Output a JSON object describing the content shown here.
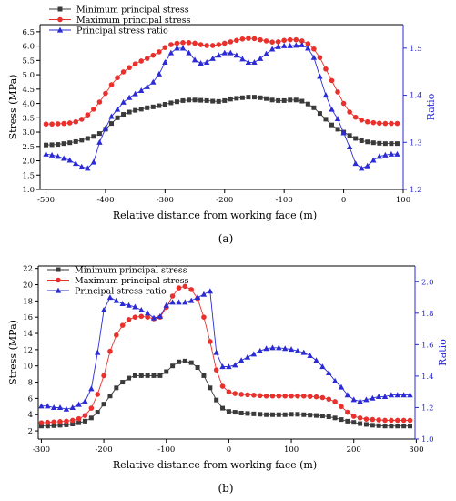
{
  "chart_data": [
    {
      "type": "line",
      "panel_label": "(a)",
      "xlabel": "Relative distance from working face (m)",
      "ylabel": "Stress (MPa)",
      "y2label": "Ratio",
      "xlim": [
        -510,
        100
      ],
      "ylim": [
        1.0,
        6.75
      ],
      "y2lim": [
        1.2,
        1.55
      ],
      "xticks": [
        -500,
        -400,
        -300,
        -200,
        -100,
        0,
        100
      ],
      "yticks": [
        1.0,
        1.5,
        2.0,
        2.5,
        3.0,
        3.5,
        4.0,
        4.5,
        5.0,
        5.5,
        6.0,
        6.5
      ],
      "y2ticks": [
        1.2,
        1.3,
        1.4,
        1.5
      ],
      "legend_position": "top-left",
      "colors": {
        "min": "#3a3a3a",
        "max": "#e8312d",
        "ratio": "#2b2bd6"
      },
      "series": [
        {
          "name": "Minimum principal stress",
          "axis": "left",
          "marker": "square",
          "x": [
            -500,
            -490,
            -480,
            -470,
            -460,
            -450,
            -440,
            -430,
            -420,
            -410,
            -400,
            -390,
            -380,
            -370,
            -360,
            -350,
            -340,
            -330,
            -320,
            -310,
            -300,
            -290,
            -280,
            -270,
            -260,
            -250,
            -240,
            -230,
            -220,
            -210,
            -200,
            -190,
            -180,
            -170,
            -160,
            -150,
            -140,
            -130,
            -120,
            -110,
            -100,
            -90,
            -80,
            -70,
            -60,
            -50,
            -40,
            -30,
            -20,
            -10,
            0,
            10,
            20,
            30,
            40,
            50,
            60,
            70,
            80,
            90
          ],
          "values": [
            2.55,
            2.56,
            2.57,
            2.6,
            2.63,
            2.67,
            2.72,
            2.78,
            2.85,
            2.95,
            3.1,
            3.3,
            3.5,
            3.62,
            3.7,
            3.76,
            3.8,
            3.85,
            3.88,
            3.92,
            3.97,
            4.02,
            4.06,
            4.1,
            4.12,
            4.12,
            4.11,
            4.1,
            4.08,
            4.07,
            4.1,
            4.15,
            4.18,
            4.2,
            4.22,
            4.22,
            4.2,
            4.17,
            4.12,
            4.1,
            4.1,
            4.12,
            4.12,
            4.08,
            3.98,
            3.85,
            3.65,
            3.45,
            3.25,
            3.1,
            3.0,
            2.88,
            2.78,
            2.7,
            2.66,
            2.63,
            2.61,
            2.6,
            2.6,
            2.6
          ]
        },
        {
          "name": "Maximum principal stress",
          "axis": "left",
          "marker": "circle",
          "x": [
            -500,
            -490,
            -480,
            -470,
            -460,
            -450,
            -440,
            -430,
            -420,
            -410,
            -400,
            -390,
            -380,
            -370,
            -360,
            -350,
            -340,
            -330,
            -320,
            -310,
            -300,
            -290,
            -280,
            -270,
            -260,
            -250,
            -240,
            -230,
            -220,
            -210,
            -200,
            -190,
            -180,
            -170,
            -160,
            -150,
            -140,
            -130,
            -120,
            -110,
            -100,
            -90,
            -80,
            -70,
            -60,
            -50,
            -40,
            -30,
            -20,
            -10,
            0,
            10,
            20,
            30,
            40,
            50,
            60,
            70,
            80,
            90
          ],
          "values": [
            3.28,
            3.28,
            3.29,
            3.3,
            3.32,
            3.36,
            3.45,
            3.6,
            3.8,
            4.05,
            4.35,
            4.65,
            4.9,
            5.1,
            5.25,
            5.38,
            5.48,
            5.57,
            5.68,
            5.8,
            5.95,
            6.05,
            6.1,
            6.12,
            6.12,
            6.1,
            6.05,
            6.02,
            6.02,
            6.05,
            6.1,
            6.15,
            6.2,
            6.25,
            6.27,
            6.26,
            6.22,
            6.18,
            6.14,
            6.15,
            6.2,
            6.22,
            6.22,
            6.18,
            6.08,
            5.9,
            5.6,
            5.2,
            4.8,
            4.4,
            4.0,
            3.7,
            3.52,
            3.42,
            3.36,
            3.33,
            3.31,
            3.3,
            3.3,
            3.3
          ]
        },
        {
          "name": "Principal stress ratio",
          "axis": "right",
          "marker": "triangle",
          "x": [
            -500,
            -490,
            -480,
            -470,
            -460,
            -450,
            -440,
            -430,
            -420,
            -410,
            -400,
            -390,
            -380,
            -370,
            -360,
            -350,
            -340,
            -330,
            -320,
            -310,
            -300,
            -290,
            -280,
            -270,
            -260,
            -250,
            -240,
            -230,
            -220,
            -210,
            -200,
            -190,
            -180,
            -170,
            -160,
            -150,
            -140,
            -130,
            -120,
            -110,
            -100,
            -90,
            -80,
            -70,
            -60,
            -50,
            -40,
            -30,
            -20,
            -10,
            0,
            10,
            20,
            30,
            40,
            50,
            60,
            70,
            80,
            90
          ],
          "values": [
            1.275,
            1.273,
            1.27,
            1.266,
            1.262,
            1.255,
            1.248,
            1.245,
            1.258,
            1.3,
            1.33,
            1.355,
            1.37,
            1.385,
            1.395,
            1.403,
            1.41,
            1.418,
            1.428,
            1.445,
            1.47,
            1.49,
            1.5,
            1.5,
            1.49,
            1.475,
            1.468,
            1.47,
            1.478,
            1.485,
            1.49,
            1.49,
            1.485,
            1.477,
            1.47,
            1.47,
            1.478,
            1.488,
            1.498,
            1.503,
            1.505,
            1.505,
            1.506,
            1.507,
            1.5,
            1.48,
            1.44,
            1.4,
            1.37,
            1.35,
            1.32,
            1.29,
            1.255,
            1.245,
            1.25,
            1.262,
            1.27,
            1.273,
            1.275,
            1.275
          ]
        }
      ]
    },
    {
      "type": "line",
      "panel_label": "(b)",
      "xlabel": "Relative distance from working face (m)",
      "ylabel": "Stress (MPa)",
      "y2label": "Ratio",
      "xlim": [
        -305,
        298
      ],
      "ylim": [
        1.0,
        22.3
      ],
      "y2lim": [
        1.0,
        2.1
      ],
      "xticks": [
        -300,
        -200,
        -100,
        0,
        100,
        200,
        300
      ],
      "yticks": [
        2,
        4,
        6,
        8,
        10,
        12,
        14,
        16,
        18,
        20,
        22
      ],
      "y2ticks": [
        1.0,
        1.2,
        1.4,
        1.6,
        1.8,
        2.0
      ],
      "legend_position": "top-left",
      "colors": {
        "min": "#3a3a3a",
        "max": "#e8312d",
        "ratio": "#2b2bd6"
      },
      "series": [
        {
          "name": "Minimum principal stress",
          "axis": "left",
          "marker": "square",
          "x": [
            -300,
            -290,
            -280,
            -270,
            -260,
            -250,
            -240,
            -230,
            -220,
            -210,
            -200,
            -190,
            -180,
            -170,
            -160,
            -150,
            -140,
            -130,
            -120,
            -110,
            -100,
            -90,
            -80,
            -70,
            -60,
            -50,
            -40,
            -30,
            -20,
            -10,
            0,
            10,
            20,
            30,
            40,
            50,
            60,
            70,
            80,
            90,
            100,
            110,
            120,
            130,
            140,
            150,
            160,
            170,
            180,
            190,
            200,
            210,
            220,
            230,
            240,
            250,
            260,
            270,
            280,
            290
          ],
          "values": [
            2.6,
            2.6,
            2.65,
            2.7,
            2.75,
            2.85,
            3.0,
            3.2,
            3.6,
            4.3,
            5.3,
            6.3,
            7.3,
            8.0,
            8.5,
            8.8,
            8.8,
            8.8,
            8.8,
            8.8,
            9.3,
            10.0,
            10.5,
            10.6,
            10.4,
            9.8,
            8.8,
            7.3,
            5.8,
            4.8,
            4.4,
            4.3,
            4.2,
            4.15,
            4.1,
            4.05,
            4.0,
            4.0,
            4.0,
            4.0,
            4.05,
            4.05,
            4.0,
            3.95,
            3.9,
            3.85,
            3.75,
            3.6,
            3.4,
            3.2,
            3.05,
            2.9,
            2.8,
            2.7,
            2.65,
            2.6,
            2.6,
            2.6,
            2.6,
            2.6
          ]
        },
        {
          "name": "Maximum principal stress",
          "axis": "left",
          "marker": "circle",
          "x": [
            -300,
            -290,
            -280,
            -270,
            -260,
            -250,
            -240,
            -230,
            -220,
            -210,
            -200,
            -190,
            -180,
            -170,
            -160,
            -150,
            -140,
            -130,
            -120,
            -110,
            -100,
            -90,
            -80,
            -70,
            -60,
            -50,
            -40,
            -30,
            -20,
            -10,
            0,
            10,
            20,
            30,
            40,
            50,
            60,
            70,
            80,
            90,
            100,
            110,
            120,
            130,
            140,
            150,
            160,
            170,
            180,
            190,
            200,
            210,
            220,
            230,
            240,
            250,
            260,
            270,
            280,
            290
          ],
          "values": [
            3.0,
            3.05,
            3.1,
            3.15,
            3.2,
            3.3,
            3.5,
            3.9,
            4.8,
            6.5,
            8.8,
            11.8,
            13.8,
            15.0,
            15.7,
            16.0,
            16.1,
            16.0,
            15.8,
            16.0,
            17.2,
            18.6,
            19.6,
            19.8,
            19.4,
            18.3,
            16.0,
            13.0,
            9.5,
            7.5,
            6.8,
            6.6,
            6.5,
            6.45,
            6.4,
            6.35,
            6.3,
            6.3,
            6.3,
            6.3,
            6.3,
            6.3,
            6.3,
            6.25,
            6.2,
            6.1,
            5.9,
            5.6,
            5.0,
            4.3,
            3.8,
            3.6,
            3.45,
            3.4,
            3.35,
            3.3,
            3.3,
            3.3,
            3.3,
            3.3
          ]
        },
        {
          "name": "Principal stress ratio",
          "axis": "right",
          "marker": "triangle",
          "x": [
            -300,
            -290,
            -280,
            -270,
            -260,
            -250,
            -240,
            -230,
            -220,
            -210,
            -200,
            -190,
            -180,
            -170,
            -160,
            -150,
            -140,
            -130,
            -120,
            -110,
            -100,
            -90,
            -80,
            -70,
            -60,
            -50,
            -40,
            -30,
            -20,
            -10,
            0,
            10,
            20,
            30,
            40,
            50,
            60,
            70,
            80,
            90,
            100,
            110,
            120,
            130,
            140,
            150,
            160,
            170,
            180,
            190,
            200,
            210,
            220,
            230,
            240,
            250,
            260,
            270,
            280,
            290
          ],
          "values": [
            1.21,
            1.21,
            1.2,
            1.2,
            1.19,
            1.2,
            1.22,
            1.24,
            1.32,
            1.55,
            1.82,
            1.9,
            1.88,
            1.86,
            1.85,
            1.84,
            1.82,
            1.8,
            1.77,
            1.78,
            1.85,
            1.87,
            1.87,
            1.87,
            1.88,
            1.9,
            1.92,
            1.94,
            1.55,
            1.46,
            1.46,
            1.47,
            1.5,
            1.52,
            1.54,
            1.56,
            1.575,
            1.58,
            1.58,
            1.575,
            1.57,
            1.56,
            1.55,
            1.53,
            1.5,
            1.46,
            1.42,
            1.37,
            1.33,
            1.28,
            1.25,
            1.24,
            1.25,
            1.26,
            1.27,
            1.27,
            1.28,
            1.28,
            1.28,
            1.28
          ]
        }
      ]
    }
  ]
}
